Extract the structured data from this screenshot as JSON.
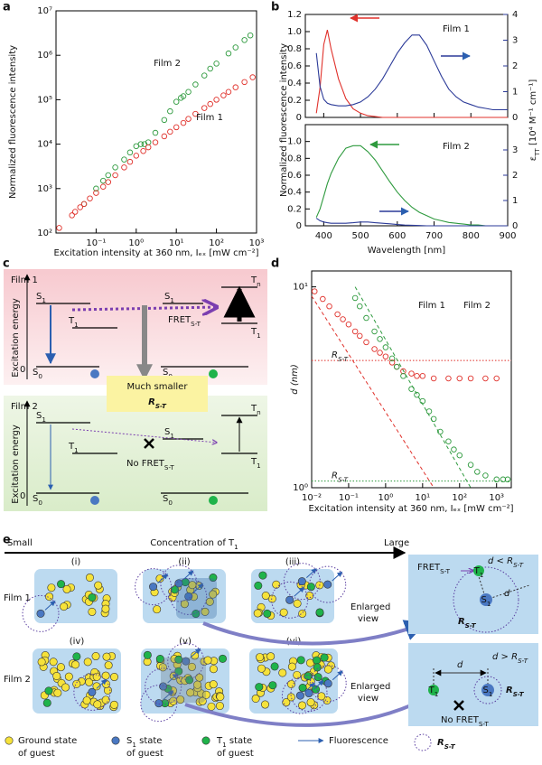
{
  "panel_labels": [
    "a",
    "b",
    "c",
    "d",
    "e"
  ],
  "chart_data": [
    {
      "type": "scatter",
      "xlabel": "Excitation intensity at 360 nm, Iₑₓ [mW cm⁻²]",
      "ylabel": "Normalized fluorescence intensity",
      "log_x": true,
      "log_y": true,
      "xlim": [
        0.01,
        1000
      ],
      "ylim": [
        100,
        10000000
      ],
      "xticks": [
        {
          "value": 0.1,
          "label": "10⁻¹"
        },
        {
          "value": 1,
          "label": "10⁰"
        },
        {
          "value": 10,
          "label": "10¹"
        },
        {
          "value": 100,
          "label": "10²"
        },
        {
          "value": 1000,
          "label": "10³"
        }
      ],
      "yticks": [
        {
          "value": 100,
          "label": "10²"
        },
        {
          "value": 1000,
          "label": "10³"
        },
        {
          "value": 10000,
          "label": "10⁴"
        },
        {
          "value": 100000,
          "label": "10⁵"
        },
        {
          "value": 1000000,
          "label": "10⁶"
        },
        {
          "value": 10000000,
          "label": "10⁷"
        }
      ],
      "series": [
        {
          "name": "Film 2",
          "color": "#2e9a3e",
          "x": [
            0.05,
            0.1,
            0.15,
            0.2,
            0.3,
            0.5,
            0.7,
            1,
            1.3,
            1.6,
            2,
            3,
            5,
            7,
            10,
            13,
            15,
            20,
            30,
            50,
            70,
            100,
            200,
            300,
            500,
            700
          ],
          "values": [
            450,
            1000,
            1500,
            2000,
            3000,
            4500,
            6500,
            9000,
            10000,
            10000,
            11000,
            18000,
            35000,
            55000,
            90000,
            110000,
            120000,
            150000,
            220000,
            350000,
            500000,
            650000,
            1100000,
            1500000,
            2200000,
            2800000
          ]
        },
        {
          "name": "Film 1",
          "color": "#e0312b",
          "x": [
            0.012,
            0.025,
            0.03,
            0.04,
            0.05,
            0.07,
            0.1,
            0.15,
            0.2,
            0.3,
            0.5,
            0.7,
            1,
            1.5,
            2,
            3,
            5,
            7,
            10,
            15,
            20,
            30,
            50,
            70,
            100,
            150,
            200,
            300,
            500,
            800
          ],
          "values": [
            130,
            250,
            300,
            380,
            450,
            600,
            800,
            1100,
            1400,
            2000,
            3000,
            4000,
            5500,
            7000,
            8500,
            11000,
            15000,
            19000,
            24000,
            30000,
            37000,
            48000,
            65000,
            80000,
            100000,
            125000,
            150000,
            190000,
            250000,
            320000
          ]
        }
      ]
    },
    {
      "type": "line",
      "annotation": "Film 1",
      "xlim": [
        350,
        900
      ],
      "ylim": [
        0,
        1.2
      ],
      "y2lim": [
        0,
        4
      ],
      "yticks": [
        0,
        0.2,
        0.4,
        0.6,
        0.8,
        {
          "value": 1,
          "label": "1.0"
        },
        1.2
      ],
      "y2ticks": [
        0,
        1,
        2,
        3,
        4
      ],
      "x": [
        380,
        390,
        400,
        410,
        420,
        440,
        460,
        480,
        500,
        520,
        540,
        560,
        580,
        600,
        620,
        640,
        660,
        680,
        700,
        720,
        740,
        760,
        780,
        800,
        820,
        840,
        860,
        880,
        900
      ],
      "series": [
        {
          "color": "#e0312b",
          "values": [
            0.05,
            0.35,
            0.85,
            1.02,
            0.8,
            0.45,
            0.22,
            0.1,
            0.05,
            0.02,
            0.01,
            0,
            0,
            0,
            0,
            0,
            0,
            0,
            0,
            0,
            0,
            0,
            0,
            0,
            0,
            0,
            0,
            0,
            0
          ]
        },
        {
          "color": "#2b3a98",
          "axis": "y2",
          "values": [
            2.5,
            1.2,
            0.7,
            0.55,
            0.5,
            0.45,
            0.45,
            0.5,
            0.6,
            0.8,
            1.1,
            1.5,
            2.0,
            2.5,
            2.9,
            3.2,
            3.2,
            2.8,
            2.2,
            1.6,
            1.1,
            0.8,
            0.6,
            0.5,
            0.4,
            0.35,
            0.3,
            0.3,
            0.3
          ]
        }
      ]
    },
    {
      "type": "line",
      "annotation": "Film 2",
      "xlabel": "Wavelength [nm]",
      "ylabel": "Normalized fluorescence intensity",
      "y2label": [
        "ε",
        "TT",
        " [10⁴ M⁻¹ cm⁻¹]"
      ],
      "xlim": [
        350,
        900
      ],
      "ylim": [
        0,
        1.2
      ],
      "y2lim": [
        0,
        4
      ],
      "xticks": [
        400,
        500,
        600,
        700,
        800,
        900
      ],
      "yticks": [
        0,
        0.2,
        0.4,
        0.6,
        0.8,
        {
          "value": 1,
          "label": "1.0"
        }
      ],
      "y2ticks": [
        0,
        1,
        2,
        3
      ],
      "x": [
        380,
        390,
        400,
        410,
        420,
        440,
        460,
        480,
        500,
        520,
        540,
        560,
        580,
        600,
        620,
        640,
        660,
        680,
        700,
        720,
        740,
        760,
        780,
        800,
        820,
        840,
        860,
        880,
        900
      ],
      "series": [
        {
          "color": "#2e9a3e",
          "values": [
            0.1,
            0.2,
            0.35,
            0.5,
            0.62,
            0.8,
            0.92,
            0.95,
            0.95,
            0.88,
            0.78,
            0.65,
            0.52,
            0.4,
            0.3,
            0.22,
            0.16,
            0.12,
            0.08,
            0.06,
            0.04,
            0.03,
            0.02,
            0.01,
            0.01,
            0,
            0,
            0,
            0
          ]
        },
        {
          "color": "#2b3a98",
          "axis": "y2",
          "values": [
            0.3,
            0.2,
            0.15,
            0.12,
            0.1,
            0.1,
            0.1,
            0.12,
            0.15,
            0.15,
            0.12,
            0.1,
            0.08,
            0.05,
            0.03,
            0.02,
            0.01,
            0,
            0,
            0,
            0,
            0,
            0,
            0,
            0,
            0,
            0,
            0,
            0
          ]
        }
      ]
    },
    {
      "type": "scatter",
      "xlabel": "Excitation intensity at 360 nm, Iₑₓ [mW cm⁻²]",
      "ylabel": [
        "d",
        " (nm)"
      ],
      "log_x": true,
      "log_y": true,
      "xlim": [
        0.01,
        2500
      ],
      "ylim": [
        1,
        12
      ],
      "xticks": [
        {
          "value": 0.01,
          "label": "10⁻²"
        },
        {
          "value": 0.1,
          "label": "10⁻¹"
        },
        {
          "value": 1,
          "label": "10⁰"
        },
        {
          "value": 10,
          "label": "10¹"
        },
        {
          "value": 100,
          "label": "10²"
        },
        {
          "value": 1000,
          "label": "10³"
        }
      ],
      "yticks": [
        {
          "value": 1,
          "label": "10⁰"
        },
        {
          "value": 10,
          "label": "10¹"
        }
      ],
      "series": [
        {
          "name": "Film 1",
          "color": "#e0312b",
          "x": [
            0.012,
            0.02,
            0.03,
            0.05,
            0.07,
            0.1,
            0.15,
            0.2,
            0.3,
            0.5,
            0.7,
            1,
            1.5,
            2,
            3,
            5,
            7,
            10,
            20,
            50,
            100,
            200,
            500,
            1000
          ],
          "values": [
            9.5,
            8.7,
            8,
            7.3,
            6.9,
            6.5,
            6,
            5.7,
            5.3,
            4.9,
            4.7,
            4.5,
            4.2,
            4.0,
            3.8,
            3.7,
            3.6,
            3.6,
            3.5,
            3.5,
            3.5,
            3.5,
            3.5,
            3.5
          ]
        },
        {
          "name": "Film 2",
          "color": "#2e9a3e",
          "x": [
            0.15,
            0.2,
            0.3,
            0.5,
            0.7,
            1,
            1.5,
            2,
            3,
            5,
            7,
            10,
            15,
            20,
            30,
            50,
            70,
            100,
            200,
            300,
            500,
            1000,
            1500,
            2000
          ],
          "values": [
            8.8,
            8,
            7,
            6,
            5.5,
            5,
            4.4,
            4,
            3.6,
            3.1,
            2.9,
            2.7,
            2.4,
            2.2,
            1.9,
            1.7,
            1.55,
            1.45,
            1.3,
            1.2,
            1.15,
            1.1,
            1.1,
            1.1
          ]
        }
      ],
      "fit_lines": [
        {
          "color": "#e0312b",
          "x": [
            0.01,
            20
          ],
          "values": [
            9,
            1
          ]
        },
        {
          "color": "#2e9a3e",
          "x": [
            0.15,
            200
          ],
          "values": [
            10,
            1
          ]
        }
      ],
      "threshold_lines": [
        {
          "color": "#e0312b",
          "value": 4.3,
          "label": [
            "R",
            "S-T"
          ]
        },
        {
          "color": "#2e9a3e",
          "value": 1.08,
          "label": [
            "R",
            "S-T"
          ]
        }
      ]
    }
  ],
  "diagram_c": {
    "film1": {
      "title": "Film 1",
      "axis": "Excitation energy",
      "zero": "0",
      "left_levels": [
        [
          "S",
          "1"
        ],
        [
          "T",
          "1"
        ],
        [
          "S",
          "0"
        ]
      ],
      "right_levels": [
        [
          "S",
          "1"
        ],
        [
          "T",
          "n"
        ],
        [
          "T",
          "1"
        ],
        [
          "S",
          "0"
        ]
      ],
      "transfer": [
        "FRET",
        "S-T"
      ]
    },
    "middle": {
      "text": "Much smaller",
      "radius": [
        "R",
        "S-T"
      ]
    },
    "film2": {
      "title": "Film 2",
      "axis": "Excitation energy",
      "zero": "0",
      "left_levels": [
        [
          "S",
          "1"
        ],
        [
          "T",
          "1"
        ],
        [
          "S",
          "0"
        ]
      ],
      "right_levels": [
        [
          "S",
          "1"
        ],
        [
          "T",
          "n"
        ],
        [
          "T",
          "1"
        ],
        [
          "S",
          "0"
        ]
      ],
      "transfer": [
        "No FRET",
        "S-T"
      ]
    }
  },
  "diagram_e": {
    "axis_start": "Small",
    "axis_title": [
      "Concentration of T",
      "1"
    ],
    "axis_end": "Large",
    "row_labels": [
      "Film 1",
      "Film 2"
    ],
    "panels": [
      "(i)",
      "(ii)",
      "(iii)",
      "(iv)",
      "(v)",
      "(vi)"
    ],
    "enlarged": [
      "Enlarged",
      "view"
    ],
    "inset_top": {
      "condition": [
        "d",
        " < ",
        "R",
        "S-T"
      ],
      "transfer": [
        "FRET",
        "S-T"
      ],
      "distance": "d",
      "radius": [
        "R",
        "S-T"
      ],
      "donor": [
        "S",
        "1"
      ],
      "acceptor": [
        "T",
        "1"
      ]
    },
    "inset_bottom": {
      "distance": "d",
      "condition": [
        "d",
        " > ",
        "R",
        "S-T"
      ],
      "radius": [
        "R",
        "S-T"
      ],
      "transfer": [
        "No FRET",
        "S-T"
      ],
      "donor": [
        "S",
        "1"
      ],
      "acceptor": [
        "T",
        "1"
      ]
    },
    "legend": [
      {
        "line1": [
          "Ground state"
        ],
        "line2": "of guest"
      },
      {
        "line1": [
          "S",
          "1",
          " state"
        ],
        "line2": "of guest"
      },
      {
        "line1": [
          "T",
          "1",
          " state"
        ],
        "line2": "of guest"
      },
      {
        "line1": [
          "Fluorescence"
        ]
      },
      {
        "line1": [
          "R",
          "S-T"
        ]
      }
    ]
  }
}
